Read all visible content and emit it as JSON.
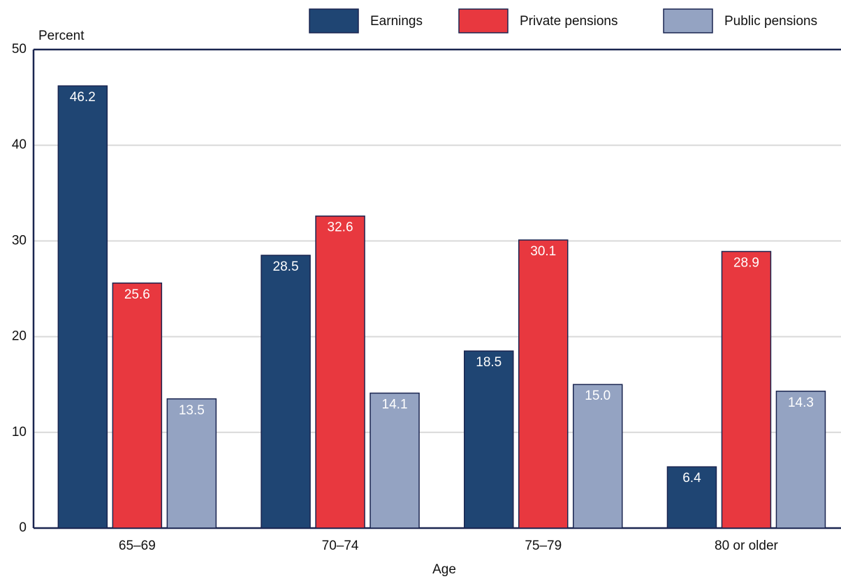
{
  "chart_data": {
    "type": "bar",
    "y_label": "Percent",
    "x_label": "Age",
    "categories": [
      "65–69",
      "70–74",
      "75–79",
      "80 or older"
    ],
    "series": [
      {
        "name": "Earnings",
        "color": "#1f4573",
        "values": [
          46.2,
          28.5,
          18.5,
          6.4
        ],
        "value_labels": [
          "46.2",
          "28.5",
          "18.5",
          "6.4"
        ]
      },
      {
        "name": "Private pensions",
        "color": "#e8383f",
        "values": [
          25.6,
          32.6,
          30.1,
          28.9
        ],
        "value_labels": [
          "25.6",
          "32.6",
          "30.1",
          "28.9"
        ]
      },
      {
        "name": "Public pensions",
        "color": "#94a3c2",
        "values": [
          13.5,
          14.1,
          15.0,
          14.3
        ],
        "value_labels": [
          "13.5",
          "14.1",
          "15.0",
          "14.3"
        ]
      }
    ],
    "ylim": [
      0,
      50
    ],
    "yticks": [
      0,
      10,
      20,
      30,
      40,
      50
    ],
    "grid": true,
    "legend": "top"
  }
}
